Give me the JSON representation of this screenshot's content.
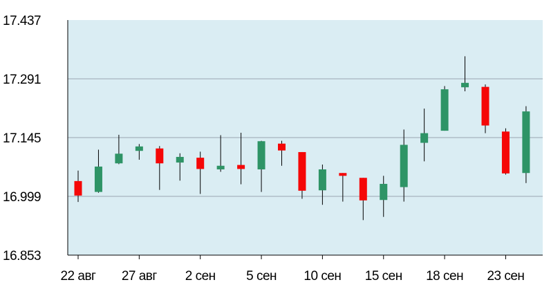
{
  "colors": {
    "plot_bg": "#daedf3",
    "grid": "#a8b4bf",
    "axis": "#000000",
    "up": "#2e9466",
    "down": "#f50707",
    "wick": "#000000"
  },
  "chart_data": {
    "type": "candlestick",
    "title": "",
    "xlabel": "",
    "ylabel": "",
    "ylim": [
      16.853,
      17.437
    ],
    "yticks": [
      "17.437",
      "17.291",
      "17.145",
      "16.999",
      "16.853"
    ],
    "xticks": [
      {
        "label": "22 авг",
        "index": 0
      },
      {
        "label": "27 авг",
        "index": 3
      },
      {
        "label": "2 сен",
        "index": 6
      },
      {
        "label": "5 сен",
        "index": 9
      },
      {
        "label": "10 сен",
        "index": 12
      },
      {
        "label": "15 сен",
        "index": 15
      },
      {
        "label": "18 сен",
        "index": 18
      },
      {
        "label": "23 сен",
        "index": 21
      }
    ],
    "grid": true,
    "candles": [
      {
        "open": 17.037,
        "high": 17.063,
        "low": 16.985,
        "close": 17.001
      },
      {
        "open": 17.01,
        "high": 17.115,
        "low": 17.008,
        "close": 17.073
      },
      {
        "open": 17.081,
        "high": 17.152,
        "low": 17.079,
        "close": 17.105
      },
      {
        "open": 17.112,
        "high": 17.129,
        "low": 17.09,
        "close": 17.123
      },
      {
        "open": 17.118,
        "high": 17.124,
        "low": 17.015,
        "close": 17.081
      },
      {
        "open": 17.083,
        "high": 17.106,
        "low": 17.038,
        "close": 17.097
      },
      {
        "open": 17.095,
        "high": 17.11,
        "low": 17.005,
        "close": 17.067
      },
      {
        "open": 17.066,
        "high": 17.151,
        "low": 17.06,
        "close": 17.075
      },
      {
        "open": 17.077,
        "high": 17.157,
        "low": 17.029,
        "close": 17.067
      },
      {
        "open": 17.066,
        "high": 17.137,
        "low": 17.01,
        "close": 17.136
      },
      {
        "open": 17.13,
        "high": 17.137,
        "low": 17.075,
        "close": 17.113
      },
      {
        "open": 17.109,
        "high": 17.109,
        "low": 16.993,
        "close": 17.013
      },
      {
        "open": 17.014,
        "high": 17.078,
        "low": 16.978,
        "close": 17.066
      },
      {
        "open": 17.057,
        "high": 17.057,
        "low": 16.986,
        "close": 17.05
      },
      {
        "open": 17.045,
        "high": 17.045,
        "low": 16.94,
        "close": 16.989
      },
      {
        "open": 16.99,
        "high": 17.05,
        "low": 16.948,
        "close": 17.03
      },
      {
        "open": 17.022,
        "high": 17.165,
        "low": 16.986,
        "close": 17.127
      },
      {
        "open": 17.132,
        "high": 17.217,
        "low": 17.086,
        "close": 17.156
      },
      {
        "open": 17.162,
        "high": 17.273,
        "low": 17.162,
        "close": 17.265
      },
      {
        "open": 17.27,
        "high": 17.347,
        "low": 17.26,
        "close": 17.281
      },
      {
        "open": 17.271,
        "high": 17.277,
        "low": 17.156,
        "close": 17.175
      },
      {
        "open": 17.16,
        "high": 17.168,
        "low": 17.053,
        "close": 17.056
      },
      {
        "open": 17.057,
        "high": 17.223,
        "low": 17.032,
        "close": 17.21
      }
    ]
  }
}
